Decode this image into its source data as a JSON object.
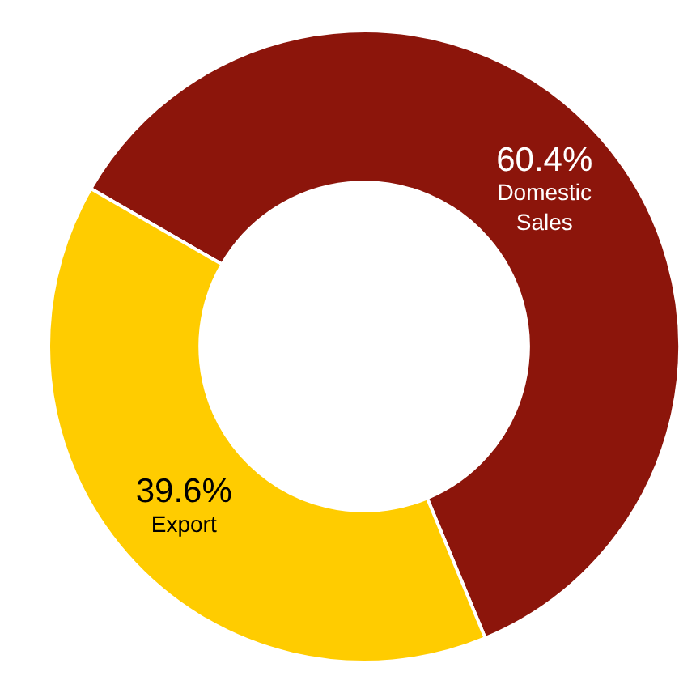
{
  "chart_data": {
    "type": "donut",
    "categories": [
      "Domestic Sales",
      "Export"
    ],
    "values": [
      60.4,
      39.6
    ],
    "colors": [
      "#8c150b",
      "#ffcc00"
    ],
    "value_labels": [
      "60.4%",
      "39.6%"
    ],
    "legend": false
  }
}
